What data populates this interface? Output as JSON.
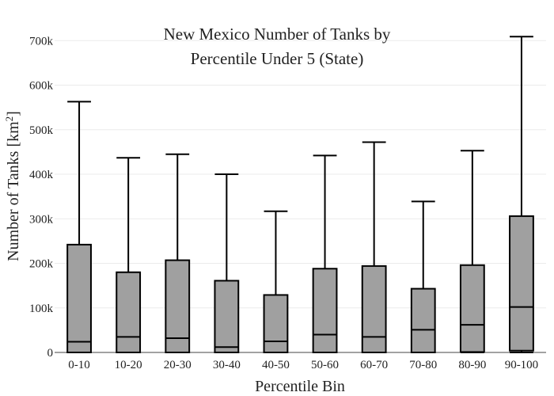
{
  "chart_data": {
    "type": "box",
    "title_lines": [
      "New Mexico Number of Tanks by",
      "Percentile Under 5 (State)"
    ],
    "xlabel": "Percentile Bin",
    "ylabel_text": "Number of Tanks  [km",
    "ylabel_sup": "2",
    "ylabel_close": "]",
    "ylim": [
      0,
      720000
    ],
    "yticks": [
      0,
      100000,
      200000,
      300000,
      400000,
      500000,
      600000,
      700000
    ],
    "ytick_labels": [
      "0",
      "100k",
      "200k",
      "300k",
      "400k",
      "500k",
      "600k",
      "700k"
    ],
    "grid": true,
    "fill_color": "#a0a0a0",
    "line_color": "#000000",
    "categories": [
      "0-10",
      "10-20",
      "20-30",
      "30-40",
      "40-50",
      "50-60",
      "60-70",
      "70-80",
      "80-90",
      "90-100"
    ],
    "boxes": [
      {
        "min": 0,
        "q1": 0,
        "median": 24000,
        "q3": 242000,
        "max": 563000
      },
      {
        "min": 0,
        "q1": 0,
        "median": 35000,
        "q3": 180000,
        "max": 437000
      },
      {
        "min": 0,
        "q1": 0,
        "median": 32000,
        "q3": 207000,
        "max": 445000
      },
      {
        "min": 0,
        "q1": 0,
        "median": 12000,
        "q3": 161000,
        "max": 400000
      },
      {
        "min": 0,
        "q1": 0,
        "median": 25000,
        "q3": 129000,
        "max": 317000
      },
      {
        "min": 0,
        "q1": 0,
        "median": 40000,
        "q3": 188000,
        "max": 442000
      },
      {
        "min": 0,
        "q1": 0,
        "median": 35000,
        "q3": 194000,
        "max": 472000
      },
      {
        "min": 0,
        "q1": 0,
        "median": 51000,
        "q3": 143000,
        "max": 339000
      },
      {
        "min": 0,
        "q1": 1000,
        "median": 62000,
        "q3": 196000,
        "max": 453000
      },
      {
        "min": 0,
        "q1": 4000,
        "median": 102000,
        "q3": 306000,
        "max": 709000
      }
    ]
  }
}
